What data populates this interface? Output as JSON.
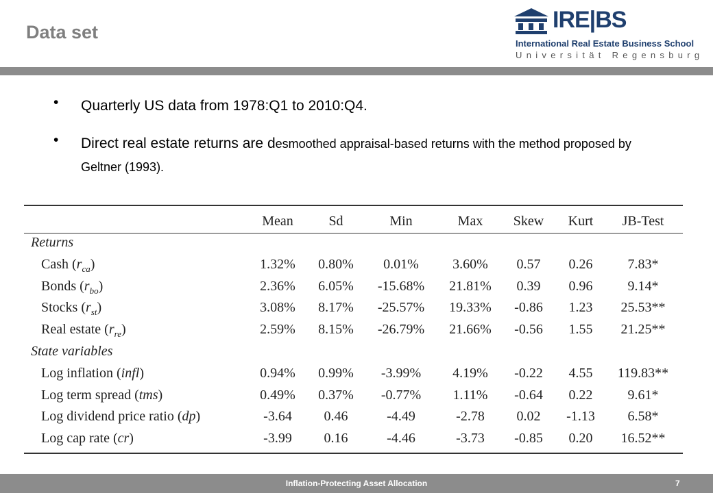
{
  "header": {
    "title": "Data set",
    "logo": {
      "mark": "IRE|BS",
      "name": "International Real Estate Business School",
      "university": "Universität Regensburg"
    }
  },
  "bullets": [
    {
      "parts": [
        "Quarterly US data from 1978:Q1 to 2010:Q4."
      ]
    },
    {
      "parts": [
        "Direct real estate returns are d",
        "esmoothed appraisal-based returns with the method proposed by Geltner (1993)."
      ]
    }
  ],
  "table": {
    "columns": [
      "Mean",
      "Sd",
      "Min",
      "Max",
      "Skew",
      "Kurt",
      "JB-Test"
    ],
    "sections": [
      {
        "title": "Returns",
        "rows": [
          {
            "label": "Cash (",
            "math": "r",
            "sub": "ca",
            "tail": ")",
            "cells": [
              "1.32%",
              "0.80%",
              "0.01%",
              "3.60%",
              "0.57",
              "0.26",
              "7.83*"
            ]
          },
          {
            "label": "Bonds (",
            "math": "r",
            "sub": "bo",
            "tail": ")",
            "cells": [
              "2.36%",
              "6.05%",
              "-15.68%",
              "21.81%",
              "0.39",
              "0.96",
              "9.14*"
            ]
          },
          {
            "label": "Stocks (",
            "math": "r",
            "sub": "st",
            "tail": ")",
            "cells": [
              "3.08%",
              "8.17%",
              "-25.57%",
              "19.33%",
              "-0.86",
              "1.23",
              "25.53**"
            ]
          },
          {
            "label": "Real estate (",
            "math": "r",
            "sub": "re",
            "tail": ")",
            "cells": [
              "2.59%",
              "8.15%",
              "-26.79%",
              "21.66%",
              "-0.56",
              "1.55",
              "21.25**"
            ]
          }
        ]
      },
      {
        "title": "State variables",
        "rows": [
          {
            "label": "Log inflation (",
            "math": "infl",
            "tail": ")",
            "cells": [
              "0.94%",
              "0.99%",
              "-3.99%",
              "4.19%",
              "-0.22",
              "4.55",
              "119.83**"
            ]
          },
          {
            "label": "Log term spread (",
            "math": "tms",
            "tail": ")",
            "cells": [
              "0.49%",
              "0.37%",
              "-0.77%",
              "1.11%",
              "-0.64",
              "0.22",
              "9.61*"
            ]
          },
          {
            "label": "Log dividend price ratio (",
            "math": "dp",
            "tail": ")",
            "cells": [
              "-3.64",
              "0.46",
              "-4.49",
              "-2.78",
              "0.02",
              "-1.13",
              "6.58*"
            ]
          },
          {
            "label": "Log cap rate (",
            "math": "cr",
            "tail": ")",
            "cells": [
              "-3.99",
              "0.16",
              "-4.46",
              "-3.73",
              "-0.85",
              "0.20",
              "16.52**"
            ]
          }
        ]
      }
    ]
  },
  "footer": {
    "text": "Inflation-Protecting Asset Allocation",
    "page": "7"
  }
}
